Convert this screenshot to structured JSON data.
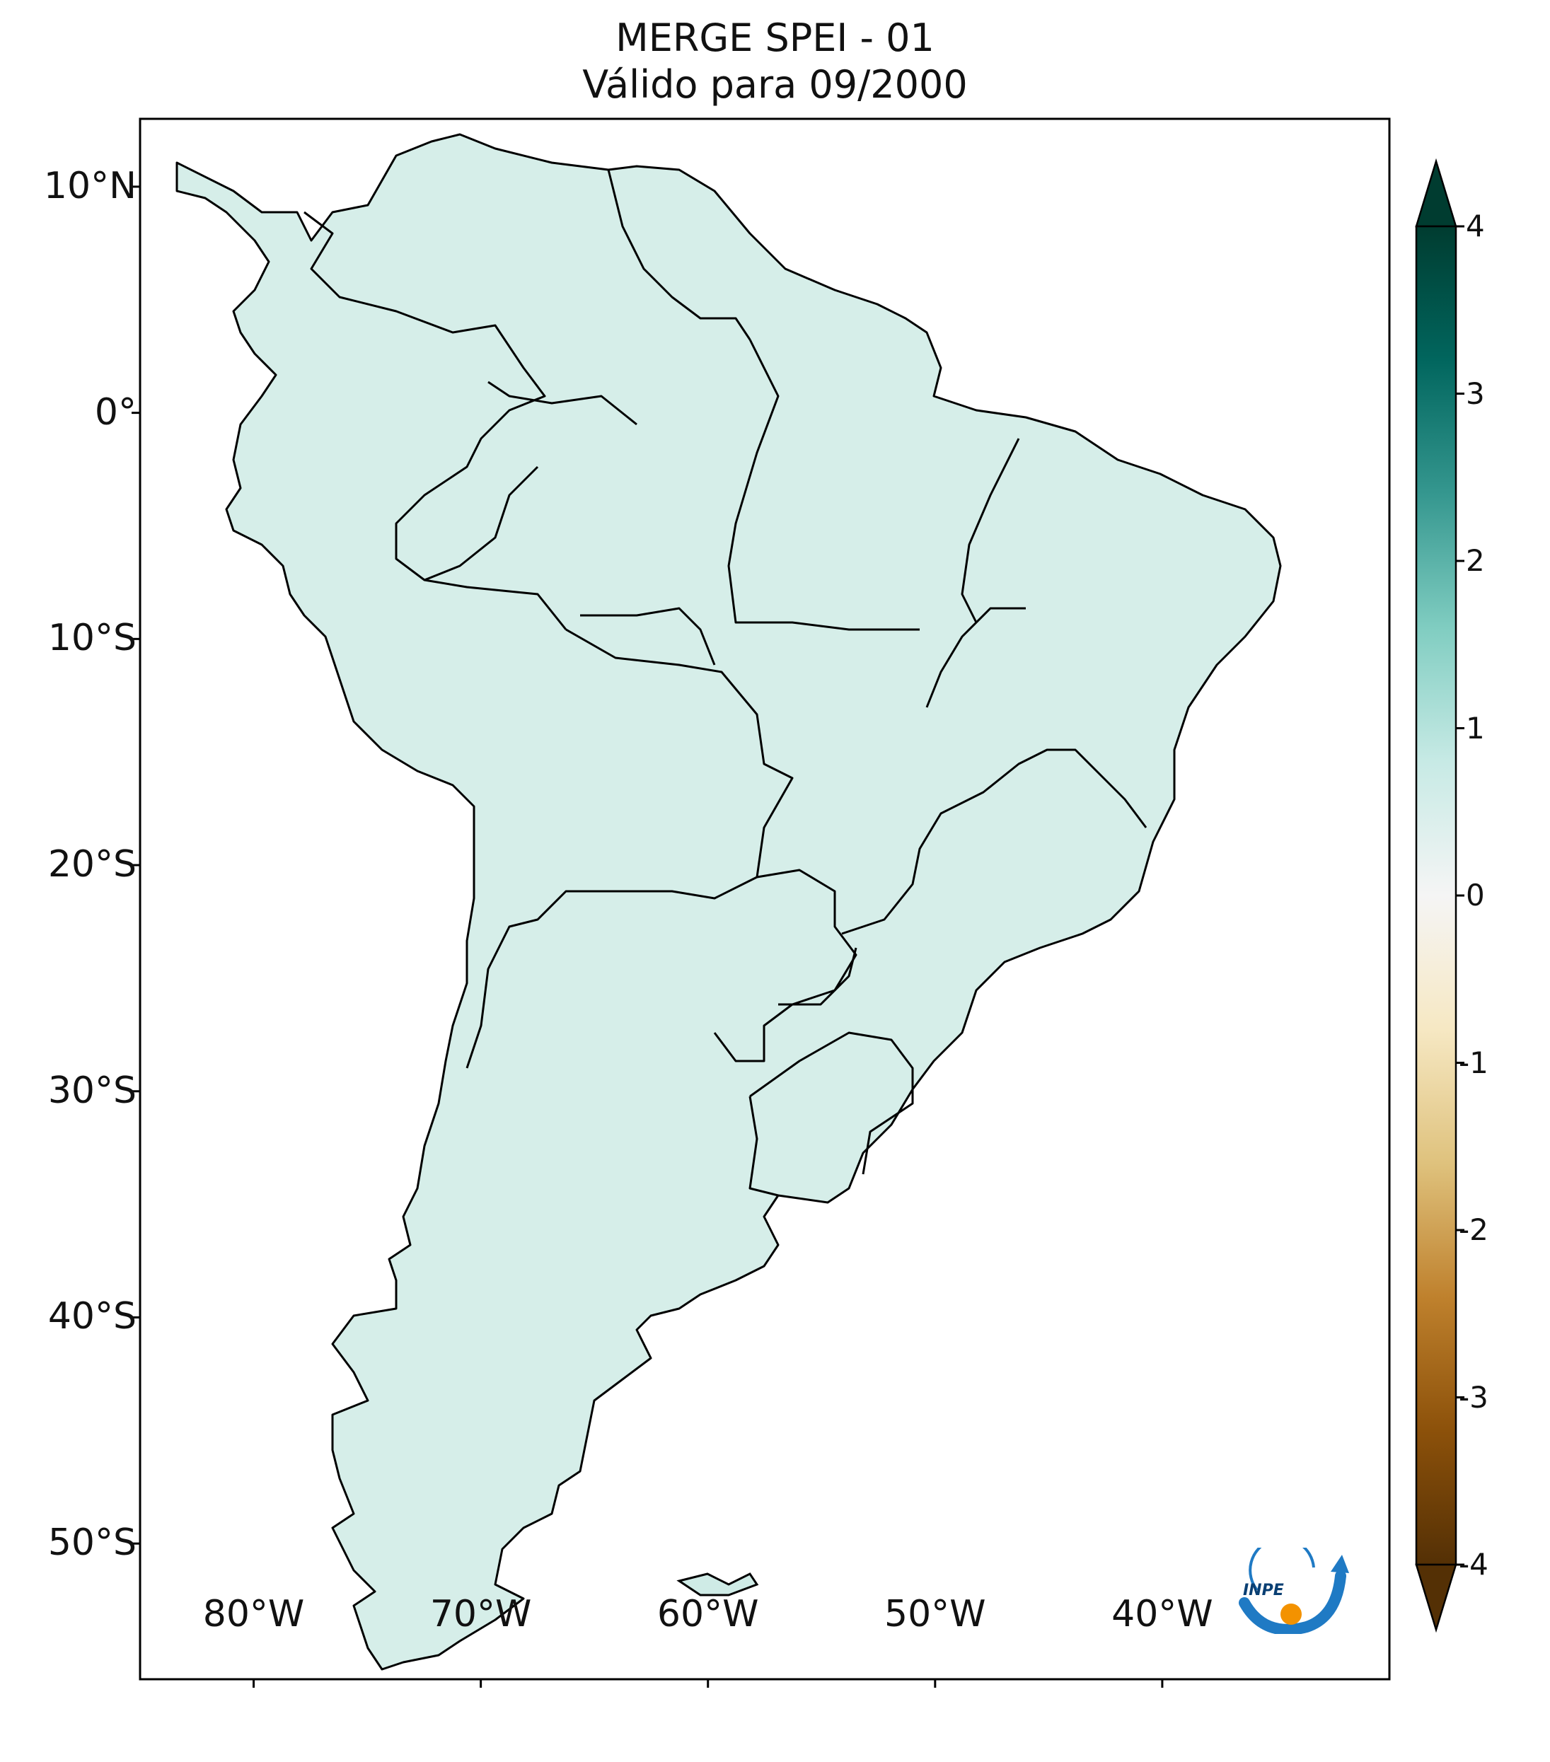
{
  "title": {
    "line1": "MERGE   SPEI - 01",
    "line2": "Válido para 09/2000"
  },
  "map": {
    "extent": {
      "lon_min": -85,
      "lon_max": -30,
      "lat_min": -56,
      "lat_max": 13
    },
    "lat_ticks": [
      {
        "value": 10,
        "label": "10°N"
      },
      {
        "value": 0,
        "label": "0°"
      },
      {
        "value": -10,
        "label": "10°S"
      },
      {
        "value": -20,
        "label": "20°S"
      },
      {
        "value": -30,
        "label": "30°S"
      },
      {
        "value": -40,
        "label": "40°S"
      },
      {
        "value": -50,
        "label": "50°S"
      }
    ],
    "lon_ticks": [
      {
        "value": -80,
        "label": "80°W"
      },
      {
        "value": -70,
        "label": "70°W"
      },
      {
        "value": -60,
        "label": "60°W"
      },
      {
        "value": -50,
        "label": "50°W"
      },
      {
        "value": -40,
        "label": "40°W"
      }
    ],
    "colors": {
      "wet_strong": "#0b6b5e",
      "wet": "#3fa89a",
      "wet_light": "#b8e2da",
      "neutral": "#f7f7f7",
      "dry_light": "#efdcb0",
      "dry": "#c9954a",
      "border": "#000000"
    }
  },
  "colorbar": {
    "min": -4,
    "max": 4,
    "ticks": [
      {
        "value": 4,
        "label": "4"
      },
      {
        "value": 3,
        "label": "3"
      },
      {
        "value": 2,
        "label": "2"
      },
      {
        "value": 1,
        "label": "1"
      },
      {
        "value": 0,
        "label": "0"
      },
      {
        "value": -1,
        "label": "-1"
      },
      {
        "value": -2,
        "label": "-2"
      },
      {
        "value": -3,
        "label": "-3"
      },
      {
        "value": -4,
        "label": "-4"
      }
    ],
    "colors": [
      "#543005",
      "#8c510a",
      "#bf812d",
      "#dfc27d",
      "#f6e8c3",
      "#f5f5f5",
      "#c7eae5",
      "#80cdc1",
      "#35978f",
      "#01665e",
      "#003c30"
    ]
  },
  "logo": {
    "text": "INPE",
    "color_blue": "#1f7ac4",
    "color_orange": "#f39200"
  }
}
